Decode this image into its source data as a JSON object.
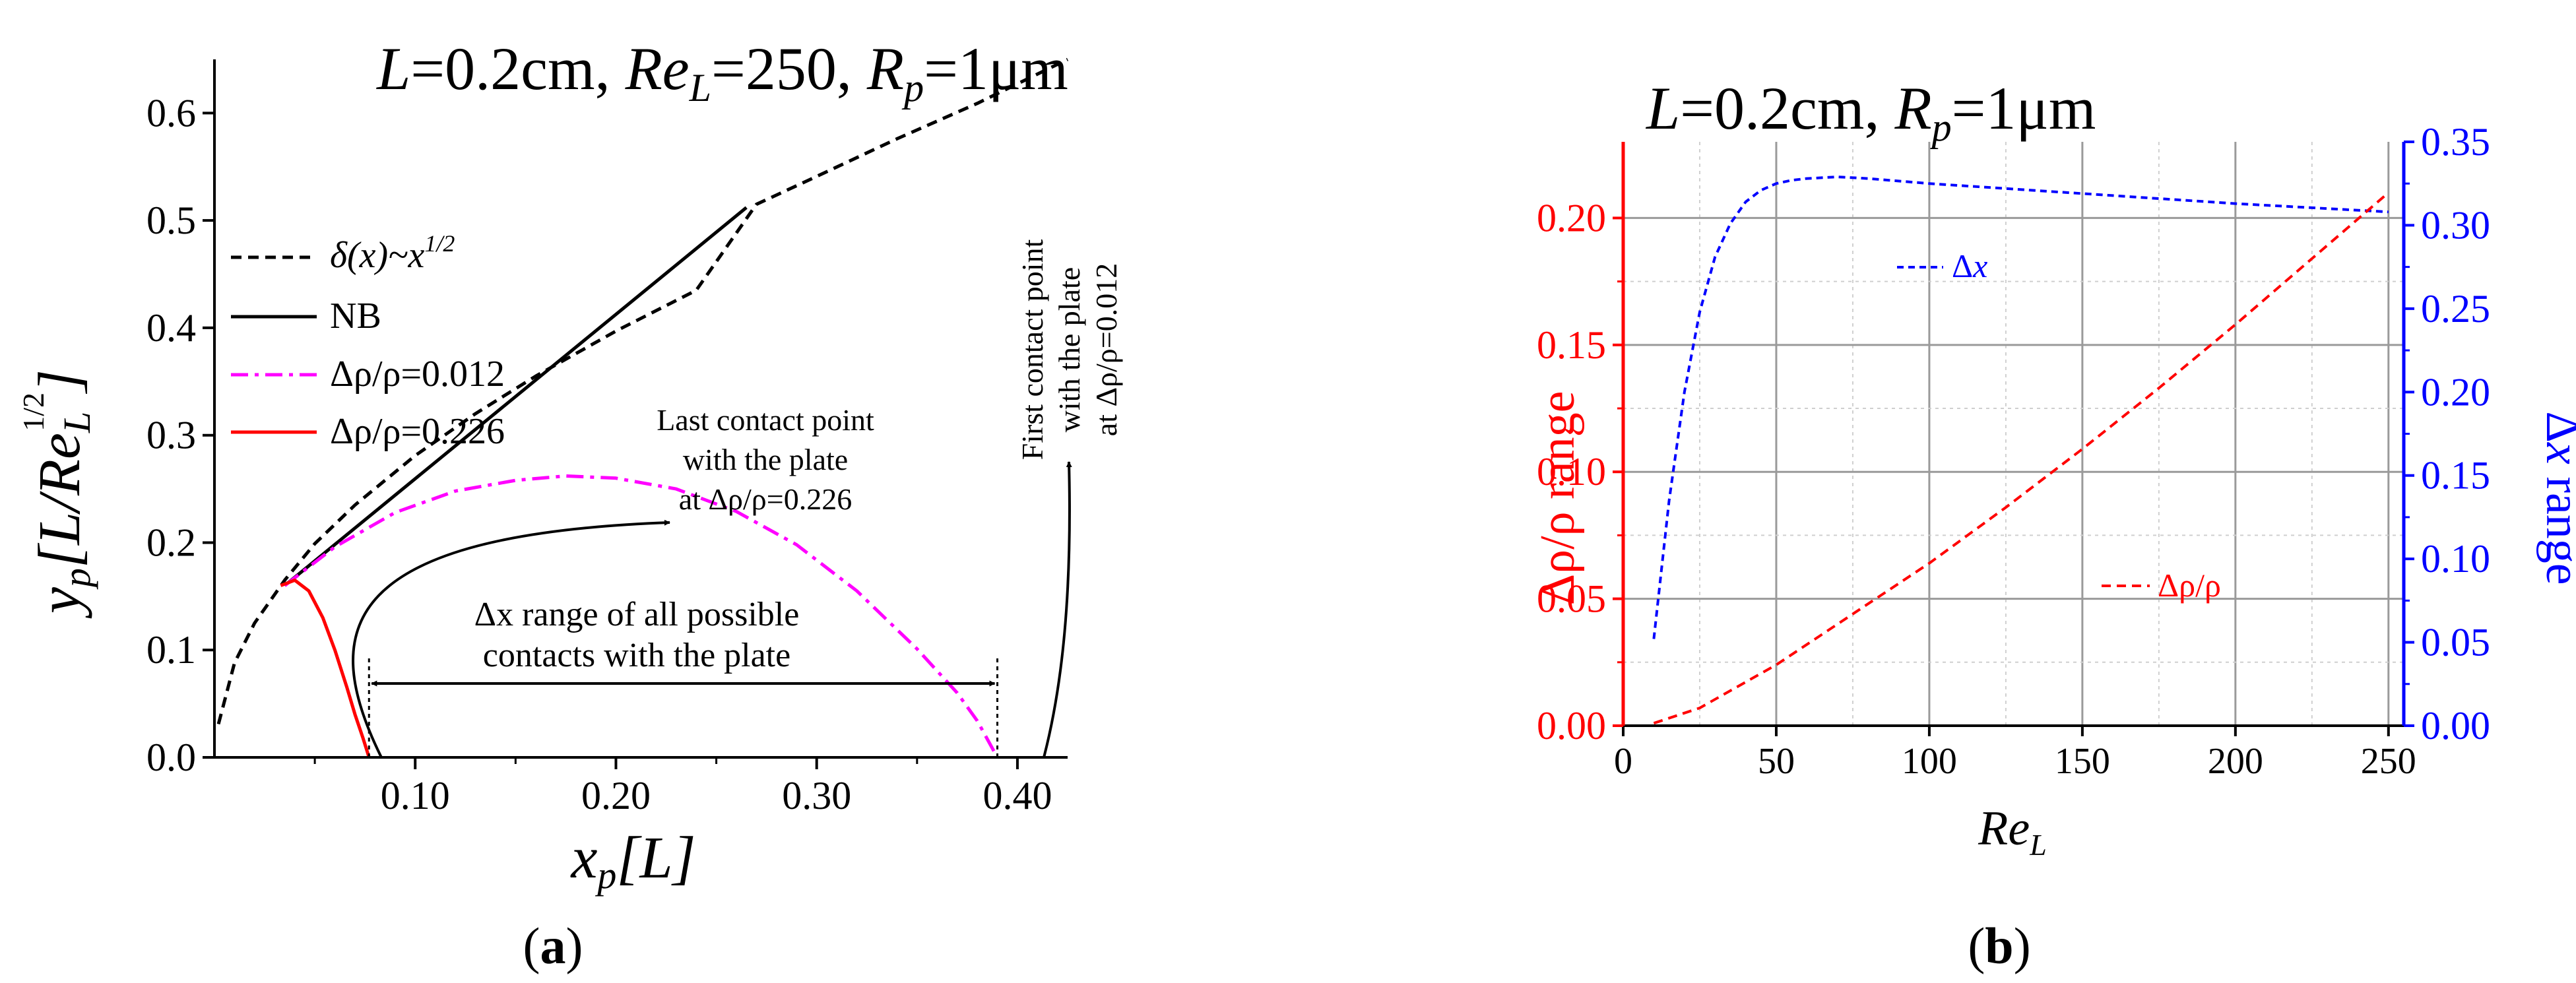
{
  "chart_data": [
    {
      "type": "line",
      "panel_label": "(a)",
      "title": {
        "L": "L",
        "L_val": "=0.2cm, ",
        "Re": "Re",
        "Re_sub": "L",
        "Re_val": "=250, ",
        "R": "R",
        "R_sub": "p",
        "R_val": "=1μm"
      },
      "xlabel": {
        "main": "x",
        "sub": "p",
        "rest": "[L]"
      },
      "ylabel": {
        "main": "y",
        "sub": "p",
        "rest1": "[L/Re",
        "rest_sub": "L",
        "rest_sup": "1/2",
        "rest2": "]"
      },
      "xlim": [
        0.0,
        0.425
      ],
      "ylim": [
        0.0,
        0.65
      ],
      "x_ticks": [
        0.1,
        0.2,
        0.3,
        0.4
      ],
      "x_tick_labels": [
        "0.10",
        "0.20",
        "0.30",
        "0.40"
      ],
      "y_ticks": [
        0.0,
        0.1,
        0.2,
        0.3,
        0.4,
        0.5,
        0.6
      ],
      "y_tick_labels": [
        "0.0",
        "0.1",
        "0.2",
        "0.3",
        "0.4",
        "0.5",
        "0.6"
      ],
      "legend_position": "top-left",
      "series": [
        {
          "name": "δ(x)~x",
          "name_sup": "1/2",
          "style": "dashed",
          "color": "#000000",
          "x": [
            0.002,
            0.01,
            0.02,
            0.035,
            0.05,
            0.07,
            0.1,
            0.13,
            0.16,
            0.2,
            0.24,
            0.27,
            0.3,
            0.34,
            0.38,
            0.425
          ],
          "y": [
            0.031,
            0.088,
            0.125,
            0.165,
            0.199,
            0.235,
            0.281,
            0.32,
            0.355,
            0.397,
            0.435,
            0.515,
            0.541,
            0.576,
            0.609,
            0.65
          ]
        },
        {
          "name": "NB",
          "style": "solid",
          "color": "#000000",
          "x": [
            0.035,
            0.265
          ],
          "y": [
            0.16,
            0.512
          ]
        },
        {
          "name": "Δρ/ρ=0.012",
          "style": "dashdot",
          "color": "#ff00ff",
          "x": [
            0.035,
            0.06,
            0.09,
            0.12,
            0.15,
            0.175,
            0.2,
            0.23,
            0.26,
            0.29,
            0.32,
            0.35,
            0.37,
            0.38,
            0.39
          ],
          "y": [
            0.16,
            0.196,
            0.228,
            0.248,
            0.258,
            0.262,
            0.26,
            0.25,
            0.229,
            0.198,
            0.155,
            0.101,
            0.06,
            0.034,
            0.0
          ]
        },
        {
          "name": "Δρ/ρ=0.226",
          "style": "solid",
          "color": "#ff0000",
          "x": [
            0.033,
            0.04,
            0.047,
            0.054,
            0.06,
            0.066,
            0.07,
            0.074,
            0.077
          ],
          "y": [
            0.16,
            0.165,
            0.155,
            0.13,
            0.1,
            0.065,
            0.04,
            0.018,
            0.0
          ]
        }
      ],
      "annotations": {
        "first_contact": [
          "First contact point",
          "with the plate",
          "at Δρ/ρ=0.012"
        ],
        "last_contact": [
          "Last contact point",
          "with the plate",
          "at Δρ/ρ=0.226"
        ],
        "range_line1": "Δx range of all possible",
        "range_line1_x": "x",
        "range_line2": "contacts with the plate",
        "range_x": [
          0.077,
          0.39
        ]
      }
    },
    {
      "type": "line",
      "panel_label": "(b)",
      "title": {
        "L": "L",
        "L_val": "=0.2cm, ",
        "R": "R",
        "R_sub": "p",
        "R_val": "=1μm"
      },
      "xlabel": {
        "main": "Re",
        "sub": "L"
      },
      "ylabel_left": "Δρ/ρ range",
      "ylabel_right": {
        "delta": "Δ",
        "x": "x",
        "rest": " range"
      },
      "xlim": [
        0,
        255
      ],
      "ylim_left": [
        0.0,
        0.23
      ],
      "ylim_right": [
        0.0,
        0.35
      ],
      "x_ticks": [
        0,
        50,
        100,
        150,
        200,
        250
      ],
      "x_tick_labels": [
        "0",
        "50",
        "100",
        "150",
        "200",
        "250"
      ],
      "y_left_ticks": [
        0.0,
        0.05,
        0.1,
        0.15,
        0.2
      ],
      "y_left_tick_labels": [
        "0.00",
        "0.05",
        "0.10",
        "0.15",
        "0.20"
      ],
      "y_right_ticks": [
        0.0,
        0.05,
        0.1,
        0.15,
        0.2,
        0.25,
        0.3,
        0.35
      ],
      "y_right_tick_labels": [
        "0.00",
        "0.05",
        "0.10",
        "0.15",
        "0.20",
        "0.25",
        "0.30",
        "0.35"
      ],
      "left_axis_color": "#ff0000",
      "right_axis_color": "#0000ff",
      "grid": true,
      "series": [
        {
          "name": "Δx",
          "axis": "right",
          "style": "dashed",
          "color": "#0000ff",
          "x": [
            10,
            15,
            20,
            25,
            30,
            35,
            40,
            45,
            50,
            55,
            60,
            70,
            80,
            100,
            150,
            200,
            250
          ],
          "y": [
            0.052,
            0.135,
            0.2,
            0.248,
            0.281,
            0.301,
            0.314,
            0.321,
            0.325,
            0.327,
            0.328,
            0.329,
            0.328,
            0.325,
            0.319,
            0.313,
            0.308
          ]
        },
        {
          "name": "Δρ/ρ",
          "axis": "left",
          "style": "dashed",
          "color": "#ff0000",
          "x": [
            10,
            25,
            50,
            75,
            100,
            125,
            150,
            175,
            200,
            225,
            250
          ],
          "y": [
            0.001,
            0.007,
            0.024,
            0.044,
            0.064,
            0.086,
            0.109,
            0.133,
            0.158,
            0.184,
            0.21
          ]
        }
      ]
    }
  ]
}
